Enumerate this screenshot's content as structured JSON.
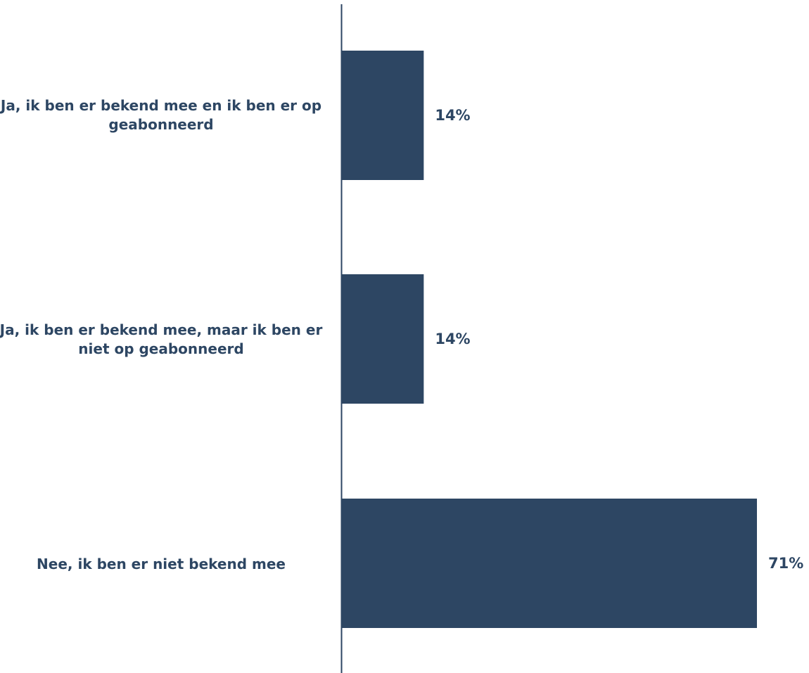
{
  "chart_data": {
    "type": "bar",
    "orientation": "horizontal",
    "categories": [
      "Ja, ik ben er bekend mee en ik ben er op geabonneerd",
      "Ja, ik ben er bekend mee, maar ik ben er niet op geabonneerd",
      "Nee, ik ben er niet bekend mee"
    ],
    "values": [
      14,
      14,
      71
    ],
    "value_labels": [
      "14%",
      "14%",
      "71%"
    ],
    "title": "",
    "xlabel": "",
    "ylabel": "",
    "xlim": [
      0,
      71
    ],
    "grid": false,
    "legend": "none",
    "bar_color": "#2d4663",
    "label_color": "#2d4663"
  }
}
